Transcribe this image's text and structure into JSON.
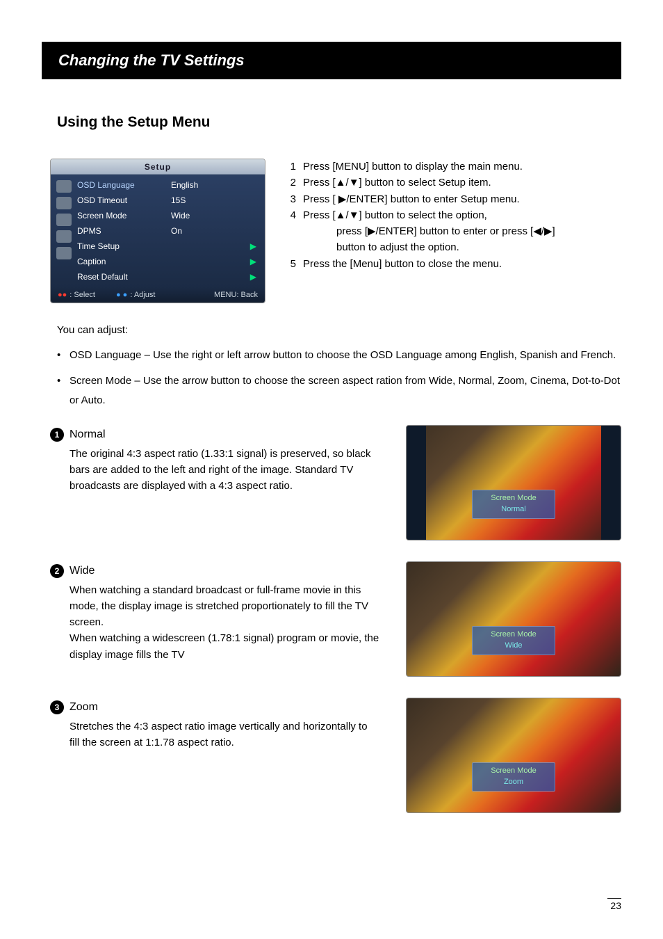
{
  "title_bar": "Changing the TV Settings",
  "section_heading": "Using the Setup Menu",
  "osd": {
    "title": "Setup",
    "rows": [
      {
        "label": "OSD Language",
        "value": "English"
      },
      {
        "label": "OSD Timeout",
        "value": "15S"
      },
      {
        "label": "Screen Mode",
        "value": "Wide"
      },
      {
        "label": "DPMS",
        "value": "On"
      },
      {
        "label": "Time Setup",
        "value": "",
        "arrow": true
      },
      {
        "label": "Caption",
        "value": "",
        "arrow": true
      },
      {
        "label": "Reset Default",
        "value": "",
        "arrow": true
      }
    ],
    "foot_select": ": Select",
    "foot_adjust": ": Adjust",
    "foot_back": "MENU: Back"
  },
  "steps": [
    {
      "n": "1",
      "t": "Press [MENU] button to display the main menu."
    },
    {
      "n": "2",
      "t": "Press [▲/▼] button to select Setup item."
    },
    {
      "n": "3",
      "t": "Press [ ▶/ENTER] button to enter Setup menu."
    },
    {
      "n": "4",
      "t": "Press [▲/▼] button to select the option,"
    },
    {
      "n": "",
      "t": "press [▶/ENTER] button to enter or press [◀/▶]"
    },
    {
      "n": "",
      "t": "button to adjust the option."
    },
    {
      "n": "5",
      "t": "Press the [Menu] button to close the menu."
    }
  ],
  "adjust": {
    "lead": "You can adjust:",
    "items": [
      "OSD Language – Use the right or left arrow button to choose the OSD Language among English, Spanish and French.",
      "Screen Mode – Use the arrow button to choose the screen aspect ration from Wide, Normal, Zoom, Cinema, Dot-to-Dot or Auto."
    ]
  },
  "modes": [
    {
      "num": "1",
      "name": "Normal",
      "desc": "The original 4:3 aspect ratio (1.33:1 signal) is preserved, so black bars are added to the left and right of the image. Standard TV broadcasts are displayed with a 4:3 aspect ratio.",
      "overlay_l1": "Screen Mode",
      "overlay_l2": "Normal",
      "narrow": true
    },
    {
      "num": "2",
      "name": "Wide",
      "desc": "When watching a standard broadcast or full-frame movie in this mode, the display image is stretched proportionately to fill the TV screen.\nWhen watching a widescreen (1.78:1 signal) program or movie, the display image fills the TV",
      "overlay_l1": "Screen Mode",
      "overlay_l2": "Wide",
      "narrow": false
    },
    {
      "num": "3",
      "name": "Zoom",
      "desc": "Stretches the 4:3 aspect ratio image vertically and horizontally to fill the screen at 1:1.78 aspect ratio.",
      "overlay_l1": "Screen Mode",
      "overlay_l2": "Zoom",
      "narrow": false
    }
  ],
  "page_number": "23"
}
